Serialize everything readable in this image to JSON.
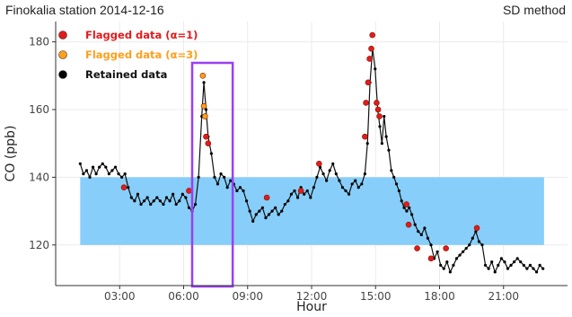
{
  "header": {
    "title": "Finokalia station 2014-12-16",
    "method": "SD method"
  },
  "colors": {
    "band": "#87cefa",
    "flag1": "#e41a1c",
    "flag3": "#ff9f1a",
    "retained": "#000000",
    "highlight": "#9b3ff5",
    "grid": "#ebebeb"
  },
  "chart_data": {
    "type": "scatter",
    "xlabel": "Hour",
    "ylabel": "CO (ppb)",
    "xlim": [
      0.0,
      24.0
    ],
    "ylim": [
      108,
      186
    ],
    "x_ticks": [
      3,
      6,
      9,
      12,
      15,
      18,
      21
    ],
    "x_tick_labels": [
      "03:00",
      "06:00",
      "09:00",
      "12:00",
      "15:00",
      "18:00",
      "21:00"
    ],
    "y_ticks": [
      120,
      140,
      160,
      180
    ],
    "y_tick_labels": [
      "120",
      "140",
      "160",
      "180"
    ],
    "grid": true,
    "legend_position": "top-left",
    "legend": [
      {
        "label": "Flagged data (α=1)",
        "color": "#e41a1c",
        "text_color": "#e41a1c"
      },
      {
        "label": "Flagged data (α=3)",
        "color": "#ff9f1a",
        "text_color": "#ff9f1a"
      },
      {
        "label": "Retained data",
        "color": "#000000",
        "text_color": "#111111"
      }
    ],
    "band": {
      "y_min": 120,
      "y_max": 140,
      "x_start": 1.15,
      "x_end": 22.9
    },
    "highlight_window": {
      "x_start": 6.4,
      "x_end": 8.3
    },
    "series": [
      {
        "name": "Retained data",
        "style": "line-points",
        "x": [
          1.15,
          1.3,
          1.45,
          1.6,
          1.75,
          1.9,
          2.05,
          2.2,
          2.35,
          2.5,
          2.65,
          2.8,
          2.95,
          3.1,
          3.25,
          3.4,
          3.55,
          3.7,
          3.85,
          4.0,
          4.15,
          4.3,
          4.45,
          4.6,
          4.75,
          4.9,
          5.05,
          5.2,
          5.35,
          5.5,
          5.65,
          5.8,
          5.95,
          6.1,
          6.25,
          6.4,
          6.55,
          6.7,
          6.85,
          6.95,
          7.05,
          7.15,
          7.3,
          7.45,
          7.6,
          7.75,
          7.9,
          8.05,
          8.2,
          8.35,
          8.5,
          8.65,
          8.8,
          8.95,
          9.1,
          9.25,
          9.4,
          9.55,
          9.7,
          9.85,
          10.0,
          10.15,
          10.3,
          10.45,
          10.6,
          10.75,
          10.9,
          11.05,
          11.2,
          11.35,
          11.5,
          11.65,
          11.8,
          11.95,
          12.1,
          12.25,
          12.4,
          12.55,
          12.7,
          12.85,
          13.0,
          13.15,
          13.3,
          13.45,
          13.6,
          13.75,
          13.9,
          14.05,
          14.2,
          14.35,
          14.5,
          14.62,
          14.74,
          14.86,
          14.98,
          15.1,
          15.2,
          15.3,
          15.4,
          15.5,
          15.62,
          15.74,
          15.86,
          15.98,
          16.1,
          16.22,
          16.34,
          16.46,
          16.58,
          16.7,
          16.85,
          17.0,
          17.15,
          17.3,
          17.45,
          17.6,
          17.75,
          17.9,
          18.05,
          18.2,
          18.35,
          18.5,
          18.65,
          18.8,
          18.95,
          19.1,
          19.25,
          19.4,
          19.55,
          19.7,
          19.85,
          20.0,
          20.15,
          20.3,
          20.45,
          20.6,
          20.75,
          20.9,
          21.05,
          21.2,
          21.35,
          21.5,
          21.65,
          21.8,
          21.95,
          22.1,
          22.25,
          22.4,
          22.55,
          22.7,
          22.85
        ],
        "y": [
          144,
          141,
          142,
          140,
          143,
          141,
          143,
          144,
          143,
          141,
          142,
          143,
          141,
          140,
          141,
          137,
          134,
          133,
          135,
          132,
          133,
          134,
          132,
          133,
          134,
          133,
          132,
          134,
          133,
          135,
          132,
          133,
          135,
          134,
          131,
          130,
          132,
          140,
          158,
          168,
          160,
          152,
          147,
          140,
          138,
          141,
          140,
          137,
          139,
          138,
          136,
          137,
          136,
          133,
          130,
          127,
          129,
          130,
          131,
          128,
          129,
          130,
          131,
          129,
          130,
          132,
          133,
          135,
          136,
          134,
          137,
          135,
          136,
          134,
          137,
          140,
          143,
          141,
          139,
          142,
          144,
          141,
          139,
          137,
          136,
          135,
          138,
          139,
          137,
          138,
          141,
          150,
          168,
          178,
          172,
          160,
          155,
          150,
          158,
          152,
          148,
          142,
          140,
          138,
          136,
          133,
          131,
          130,
          131,
          129,
          126,
          124,
          123,
          125,
          122,
          120,
          116,
          118,
          114,
          113,
          115,
          112,
          114,
          116,
          117,
          118,
          119,
          120,
          122,
          124,
          121,
          120,
          114,
          113,
          115,
          112,
          114,
          116,
          115,
          113,
          114,
          115,
          116,
          115,
          114,
          113,
          114,
          113,
          112,
          114,
          113
        ]
      },
      {
        "name": "Flagged data (α=1)",
        "style": "points",
        "x": [
          3.2,
          6.25,
          7.05,
          7.15,
          9.9,
          11.5,
          12.35,
          14.5,
          14.55,
          14.65,
          14.72,
          14.8,
          14.85,
          15.05,
          15.12,
          15.18,
          16.45,
          16.55,
          16.95,
          17.6,
          18.3,
          19.75
        ],
        "y": [
          137,
          136,
          152,
          150,
          134,
          136,
          144,
          152,
          162,
          168,
          175,
          178,
          182,
          162,
          160,
          158,
          132,
          126,
          119,
          116,
          119,
          125
        ]
      },
      {
        "name": "Flagged data (α=3)",
        "style": "points",
        "x": [
          6.9,
          6.95,
          7.0
        ],
        "y": [
          170,
          161,
          158
        ]
      }
    ]
  }
}
